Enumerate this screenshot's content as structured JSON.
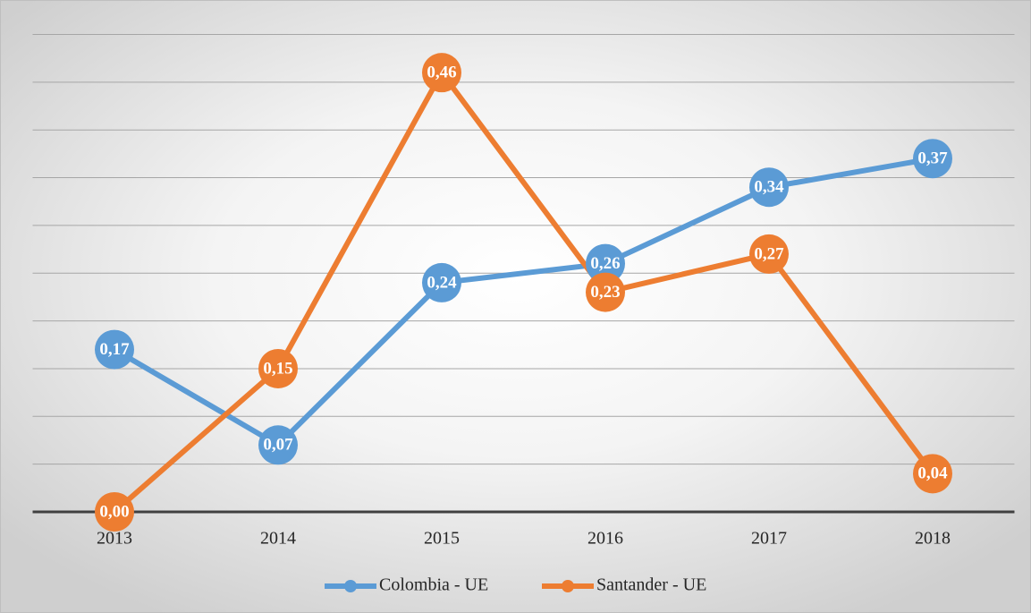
{
  "chart_data": {
    "type": "line",
    "categories": [
      "2013",
      "2014",
      "2015",
      "2016",
      "2017",
      "2018"
    ],
    "series": [
      {
        "name": "Colombia - UE",
        "color": "#5b9bd5",
        "values": [
          0.17,
          0.07,
          0.24,
          0.26,
          0.34,
          0.37
        ],
        "value_labels": [
          "0,17",
          "0,07",
          "0,24",
          "0,26",
          "0,34",
          "0,37"
        ]
      },
      {
        "name": "Santander - UE",
        "color": "#ed7d31",
        "values": [
          0,
          0.15,
          0.46,
          0.23,
          0.27,
          0.04
        ],
        "value_labels": [
          "0,00",
          "0,15",
          "0,46",
          "0,23",
          "0,27",
          "0,04"
        ]
      }
    ],
    "ylim": [
      0,
      0.5
    ],
    "yticks": [
      0,
      0.05,
      0.1,
      0.15,
      0.2,
      0.25,
      0.3,
      0.35,
      0.4,
      0.45,
      0.5
    ],
    "grid": true,
    "legend": "bottom"
  }
}
